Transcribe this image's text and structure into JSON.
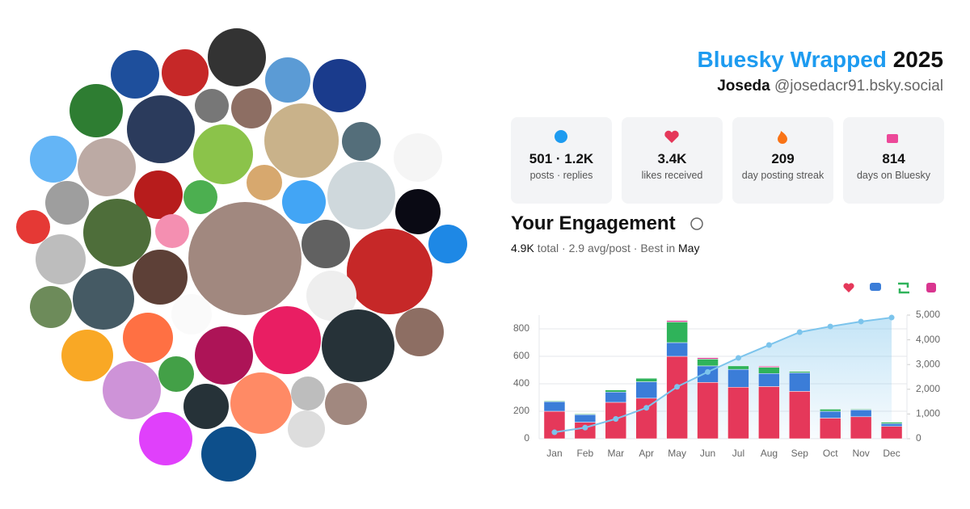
{
  "header": {
    "title": "Bluesky Wrapped",
    "year": "2025",
    "name": "Joseda",
    "handle": "@josedacr91.bsky.social"
  },
  "stats": [
    {
      "value": "501 · 1.2K",
      "label": "posts · replies"
    },
    {
      "value": "3.4K",
      "label": "likes received"
    },
    {
      "value": "209",
      "label": "day posting streak"
    },
    {
      "value": "814",
      "label": "days on Bluesky"
    }
  ],
  "engagement": {
    "title": "Your Engagement",
    "summary": [
      "4.9K",
      " total · 2.9 avg/post · Best in ",
      "May"
    ]
  },
  "chart_data": {
    "type": "bar",
    "stacked": true,
    "grid": true,
    "categories": [
      "Jan",
      "Feb",
      "Mar",
      "Apr",
      "May",
      "Jun",
      "Jul",
      "Aug",
      "Sep",
      "Oct",
      "Nov",
      "Dec"
    ],
    "series": [
      {
        "color": "#e5385a",
        "values": [
          200,
          120,
          265,
          295,
          600,
          410,
          375,
          380,
          345,
          150,
          160,
          90
        ]
      },
      {
        "color": "#3b7dd8",
        "values": [
          70,
          55,
          75,
          120,
          100,
          120,
          130,
          95,
          135,
          50,
          50,
          20
        ]
      },
      {
        "color": "#2fb35a",
        "values": [
          5,
          5,
          15,
          25,
          150,
          50,
          25,
          45,
          10,
          15,
          5,
          10
        ]
      },
      {
        "color": "#d9358f",
        "values": [
          0,
          0,
          0,
          0,
          10,
          10,
          0,
          8,
          0,
          0,
          0,
          0
        ]
      },
      {
        "type": "line",
        "axis": "y2",
        "color": "#7cc4ec",
        "values": [
          260,
          450,
          800,
          1250,
          2100,
          2700,
          3270,
          3790,
          4310,
          4540,
          4740,
          4900
        ]
      }
    ],
    "ylim": [
      0,
      900
    ],
    "yticks": [
      0,
      200,
      400,
      600,
      800
    ],
    "y2lim": [
      0,
      5000
    ],
    "y2ticks": [
      0,
      {
        "value": 1000,
        "label": "1,000"
      },
      {
        "value": 2000,
        "label": "2,000"
      },
      {
        "value": 3000,
        "label": "3,000"
      },
      {
        "value": 4000,
        "label": "4,000"
      },
      {
        "value": 5000,
        "label": "5,000"
      }
    ]
  }
}
